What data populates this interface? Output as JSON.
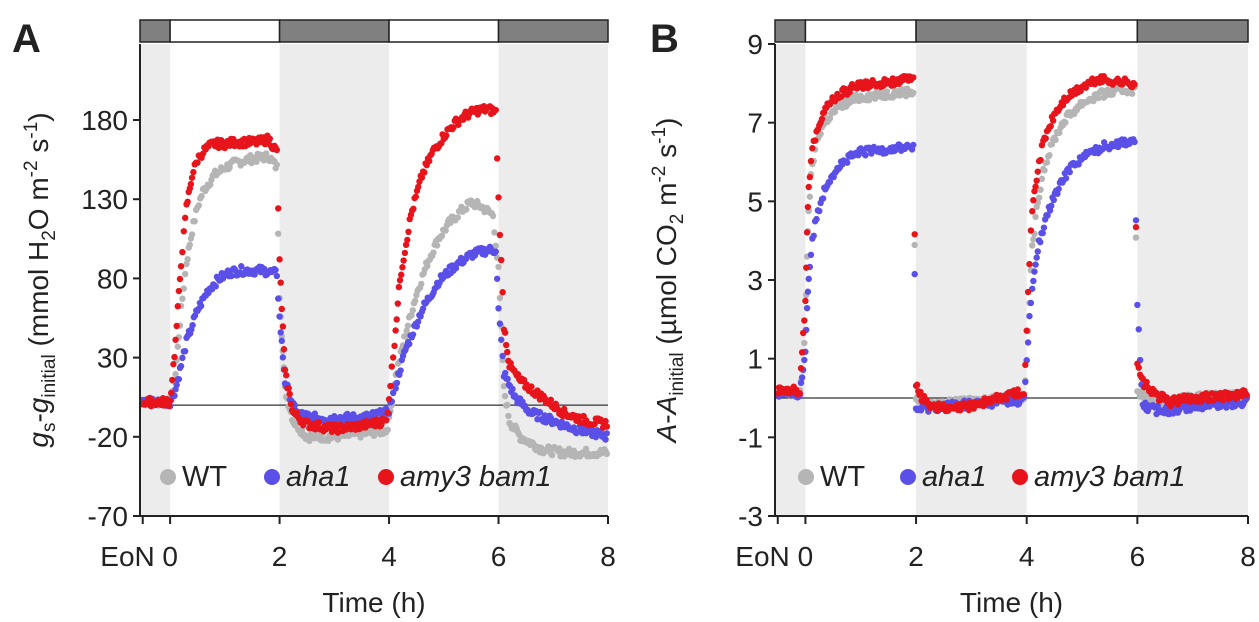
{
  "chart_data": [
    {
      "type": "scatter",
      "panel_label": "A",
      "ylabel": {
        "g1": "g",
        "g1sub": "s",
        "dash": "-",
        "g2": "g",
        "g2sub": "initial",
        "unit_open": " (mmol H",
        "unit_sub": "2",
        "unit_mid": "O m",
        "unit_sup1": "-2",
        "unit_s": " s",
        "unit_sup2": "-1",
        "unit_close": ")"
      },
      "xlabel": "Time (h)",
      "x_ticks": [
        "EoN",
        "0",
        "2",
        "4",
        "6",
        "8"
      ],
      "x_tick_values": [
        -0.5,
        0,
        2,
        4,
        6,
        8
      ],
      "xlim": [
        -0.55,
        8
      ],
      "y_ticks": [
        180,
        130,
        80,
        30,
        -20,
        -70
      ],
      "ylim": [
        -70,
        228
      ],
      "light_bar": [
        {
          "start": -0.55,
          "end": 0,
          "state": "dark"
        },
        {
          "start": 0,
          "end": 2,
          "state": "light"
        },
        {
          "start": 2,
          "end": 4,
          "state": "dark"
        },
        {
          "start": 4,
          "end": 6,
          "state": "light"
        },
        {
          "start": 6,
          "end": 8,
          "state": "dark"
        }
      ],
      "shaded_regions": [
        [
          -0.55,
          0
        ],
        [
          2,
          4
        ],
        [
          6,
          8
        ]
      ],
      "zero_line": 0,
      "legend": [
        {
          "name": "WT",
          "italic": false,
          "color": "#b5b5b5"
        },
        {
          "name": "aha1",
          "italic": true,
          "color": "#5a50e8"
        },
        {
          "name": "amy3 bam1",
          "italic": true,
          "color": "#e8141c"
        }
      ],
      "series": [
        {
          "name": "WT",
          "color": "#b5b5b5",
          "x": [
            -0.5,
            0,
            0.1,
            0.2,
            0.3,
            0.4,
            0.5,
            0.6,
            0.8,
            1.0,
            1.2,
            1.4,
            1.6,
            1.8,
            1.95,
            2.0,
            2.1,
            2.25,
            2.5,
            3.0,
            3.5,
            3.95,
            4.0,
            4.1,
            4.3,
            4.5,
            4.7,
            4.9,
            5.1,
            5.3,
            5.5,
            5.7,
            5.9,
            6.0,
            6.1,
            6.2,
            6.4,
            6.8,
            7.2,
            7.6,
            8.0
          ],
          "y": [
            2,
            2,
            20,
            60,
            90,
            110,
            125,
            135,
            145,
            150,
            153,
            155,
            156,
            157,
            150,
            70,
            10,
            -10,
            -20,
            -20,
            -18,
            -16,
            -10,
            15,
            45,
            70,
            90,
            105,
            115,
            122,
            128,
            125,
            120,
            85,
            10,
            -10,
            -20,
            -28,
            -30,
            -30,
            -30
          ]
        },
        {
          "name": "aha1",
          "color": "#5a50e8",
          "x": [
            -0.5,
            0,
            0.1,
            0.2,
            0.3,
            0.5,
            0.7,
            0.9,
            1.1,
            1.3,
            1.5,
            1.7,
            1.95,
            2.0,
            2.1,
            2.3,
            2.6,
            3.0,
            3.5,
            3.95,
            4.0,
            4.1,
            4.3,
            4.6,
            4.9,
            5.2,
            5.5,
            5.8,
            5.95,
            6.0,
            6.1,
            6.3,
            6.6,
            7.0,
            7.4,
            7.8,
            8.0
          ],
          "y": [
            2,
            2,
            10,
            25,
            40,
            60,
            73,
            80,
            84,
            85,
            85,
            85,
            83,
            55,
            15,
            -5,
            -8,
            -8,
            -8,
            -5,
            -3,
            10,
            35,
            60,
            78,
            88,
            95,
            98,
            98,
            60,
            20,
            5,
            -5,
            -10,
            -15,
            -18,
            -20
          ]
        },
        {
          "name": "amy3 bam1",
          "color": "#e8141c",
          "x": [
            -0.5,
            0,
            0.1,
            0.2,
            0.3,
            0.4,
            0.5,
            0.6,
            0.7,
            0.8,
            1.0,
            1.2,
            1.4,
            1.6,
            1.8,
            1.95,
            2.0,
            2.1,
            2.25,
            2.5,
            3.0,
            3.5,
            3.95,
            4.0,
            4.1,
            4.2,
            4.4,
            4.6,
            4.8,
            5.0,
            5.2,
            5.4,
            5.6,
            5.8,
            5.95,
            6.0,
            6.1,
            6.2,
            6.4,
            6.8,
            7.2,
            7.6,
            8.0
          ],
          "y": [
            2,
            2,
            40,
            90,
            125,
            145,
            155,
            160,
            163,
            165,
            165,
            166,
            166,
            166,
            168,
            160,
            90,
            20,
            -5,
            -12,
            -15,
            -13,
            -10,
            5,
            40,
            80,
            120,
            145,
            160,
            170,
            178,
            183,
            186,
            187,
            185,
            130,
            50,
            25,
            15,
            5,
            -5,
            -10,
            -12
          ]
        }
      ]
    },
    {
      "type": "scatter",
      "panel_label": "B",
      "ylabel": {
        "a1": "A",
        "dash": "-",
        "a2": "A",
        "a2sub": "initial",
        "unit_open": " (µmol CO",
        "unit_sub": "2",
        "unit_mid": " m",
        "unit_sup1": "-2",
        "unit_s": " s",
        "unit_sup2": "-1",
        "unit_close": ")"
      },
      "xlabel": "Time (h)",
      "x_ticks": [
        "EoN",
        "0",
        "2",
        "4",
        "6",
        "8"
      ],
      "x_tick_values": [
        -0.5,
        0,
        2,
        4,
        6,
        8
      ],
      "xlim": [
        -0.55,
        8
      ],
      "y_ticks": [
        9,
        7,
        5,
        3,
        1,
        -1,
        -3
      ],
      "ylim": [
        -3,
        9
      ],
      "light_bar": [
        {
          "start": -0.55,
          "end": 0,
          "state": "dark"
        },
        {
          "start": 0,
          "end": 2,
          "state": "light"
        },
        {
          "start": 2,
          "end": 4,
          "state": "dark"
        },
        {
          "start": 4,
          "end": 6,
          "state": "light"
        },
        {
          "start": 6,
          "end": 8,
          "state": "dark"
        }
      ],
      "shaded_regions": [
        [
          -0.55,
          0
        ],
        [
          2,
          4
        ],
        [
          6,
          8
        ]
      ],
      "zero_line": 0,
      "legend": [
        {
          "name": "WT",
          "italic": false,
          "color": "#b5b5b5"
        },
        {
          "name": "aha1",
          "italic": true,
          "color": "#5a50e8"
        },
        {
          "name": "amy3 bam1",
          "italic": true,
          "color": "#e8141c"
        }
      ],
      "series": [
        {
          "name": "WT",
          "color": "#b5b5b5",
          "x": [
            -0.5,
            -0.1,
            0.0,
            0.03,
            0.06,
            0.1,
            0.15,
            0.2,
            0.3,
            0.4,
            0.6,
            0.8,
            1.0,
            1.3,
            1.6,
            1.95,
            2.0,
            2.2,
            2.5,
            3.0,
            3.5,
            3.95,
            4.0,
            4.05,
            4.1,
            4.2,
            4.3,
            4.5,
            4.7,
            5.0,
            5.3,
            5.6,
            5.95,
            6.0,
            6.2,
            6.5,
            7.0,
            7.5,
            8.0
          ],
          "y": [
            0.1,
            0.1,
            1.8,
            3.5,
            4.8,
            5.6,
            6.1,
            6.5,
            6.9,
            7.1,
            7.4,
            7.55,
            7.65,
            7.7,
            7.75,
            7.8,
            0.0,
            -0.2,
            -0.15,
            -0.1,
            0.0,
            0.0,
            0.9,
            2.5,
            3.8,
            5.0,
            5.8,
            6.6,
            7.1,
            7.5,
            7.7,
            7.8,
            7.85,
            0.2,
            -0.05,
            -0.1,
            0.0,
            0.05,
            0.1
          ]
        },
        {
          "name": "aha1",
          "color": "#5a50e8",
          "x": [
            -0.5,
            -0.1,
            0.0,
            0.03,
            0.06,
            0.1,
            0.15,
            0.2,
            0.3,
            0.4,
            0.6,
            0.8,
            1.0,
            1.3,
            1.6,
            1.95,
            2.0,
            2.2,
            2.5,
            3.0,
            3.5,
            3.95,
            4.0,
            4.05,
            4.1,
            4.2,
            4.4,
            4.6,
            4.8,
            5.1,
            5.4,
            5.7,
            5.95,
            6.0,
            6.1,
            6.3,
            6.6,
            7.0,
            7.5,
            8.0
          ],
          "y": [
            0.1,
            0.1,
            1.2,
            2.3,
            3.1,
            3.7,
            4.2,
            4.6,
            5.1,
            5.5,
            5.9,
            6.1,
            6.25,
            6.3,
            6.35,
            6.4,
            -0.3,
            -0.25,
            -0.2,
            -0.15,
            -0.1,
            -0.05,
            0.9,
            2.0,
            2.8,
            3.8,
            4.8,
            5.4,
            5.9,
            6.2,
            6.4,
            6.5,
            6.55,
            2.3,
            -0.2,
            -0.3,
            -0.3,
            -0.2,
            -0.15,
            -0.1
          ]
        },
        {
          "name": "amy3 bam1",
          "color": "#e8141c",
          "x": [
            -0.5,
            -0.1,
            0.0,
            0.03,
            0.06,
            0.1,
            0.15,
            0.2,
            0.3,
            0.4,
            0.6,
            0.8,
            1.0,
            1.3,
            1.6,
            1.95,
            2.0,
            2.1,
            2.3,
            2.6,
            3.0,
            3.5,
            3.95,
            4.0,
            4.05,
            4.1,
            4.2,
            4.3,
            4.5,
            4.7,
            5.0,
            5.3,
            5.6,
            5.95,
            6.0,
            6.1,
            6.3,
            6.6,
            7.0,
            7.5,
            8.0
          ],
          "y": [
            0.2,
            0.2,
            2.5,
            4.3,
            5.4,
            6.0,
            6.5,
            6.8,
            7.2,
            7.45,
            7.7,
            7.85,
            7.95,
            8.0,
            8.05,
            8.1,
            0.4,
            0.0,
            -0.2,
            -0.3,
            -0.2,
            0.0,
            0.2,
            1.7,
            3.5,
            4.8,
            5.8,
            6.5,
            7.2,
            7.6,
            7.9,
            8.1,
            8.05,
            8.0,
            0.8,
            0.4,
            0.1,
            -0.1,
            0.0,
            0.05,
            0.1
          ]
        }
      ]
    }
  ]
}
